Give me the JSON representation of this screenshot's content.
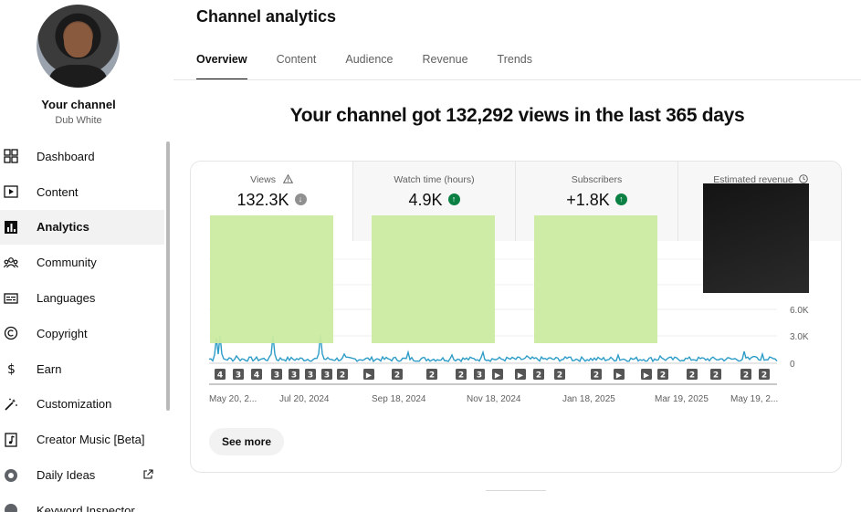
{
  "sidebar": {
    "channel_name": "Your channel",
    "channel_handle": "Dub White",
    "items": [
      {
        "label": "Dashboard",
        "icon": "dashboard-icon"
      },
      {
        "label": "Content",
        "icon": "content-icon"
      },
      {
        "label": "Analytics",
        "icon": "analytics-icon",
        "active": true
      },
      {
        "label": "Community",
        "icon": "community-icon"
      },
      {
        "label": "Languages",
        "icon": "languages-icon"
      },
      {
        "label": "Copyright",
        "icon": "copyright-icon"
      },
      {
        "label": "Earn",
        "icon": "earn-icon"
      },
      {
        "label": "Customization",
        "icon": "customization-icon"
      },
      {
        "label": "Creator Music [Beta]",
        "icon": "creator-music-icon"
      },
      {
        "label": "Daily Ideas",
        "icon": "daily-ideas-icon"
      },
      {
        "label": "Keyword Inspector",
        "icon": "keyword-inspector-icon"
      }
    ]
  },
  "page": {
    "title": "Channel analytics",
    "tabs": [
      "Overview",
      "Content",
      "Audience",
      "Revenue",
      "Trends"
    ],
    "active_tab": "Overview",
    "headline": "Your channel got 132,292 views in the last 365 days"
  },
  "metrics": [
    {
      "label": "Views",
      "value": "132.3K",
      "trend": "down",
      "has_warning": true
    },
    {
      "label": "Watch time (hours)",
      "value": "4.9K",
      "trend": "up"
    },
    {
      "label": "Subscribers",
      "value": "+1.8K",
      "trend": "up"
    },
    {
      "label": "Estimated revenue",
      "value": "",
      "trend": "none"
    }
  ],
  "chart_data": {
    "type": "line",
    "y_ticks": [
      "6.0K",
      "3.0K",
      "0"
    ],
    "x_ticks": [
      "May 20, 2...",
      "Jul 20, 2024",
      "Sep 18, 2024",
      "Nov 18, 2024",
      "Jan 18, 2025",
      "Mar 19, 2025",
      "May 19, 2..."
    ],
    "markers": [
      "4",
      "3",
      "4",
      "3",
      "3",
      "3",
      "3",
      "2",
      "▶",
      "2",
      "2",
      "2",
      "3",
      "▶",
      "▶",
      "2",
      "2",
      "2",
      "▶",
      "▶",
      "2",
      "2",
      "2",
      "2",
      "2"
    ],
    "colors": {
      "line": "#2d9cc7",
      "marker_bg": "#555555"
    }
  },
  "actions": {
    "see_more": "See more"
  }
}
